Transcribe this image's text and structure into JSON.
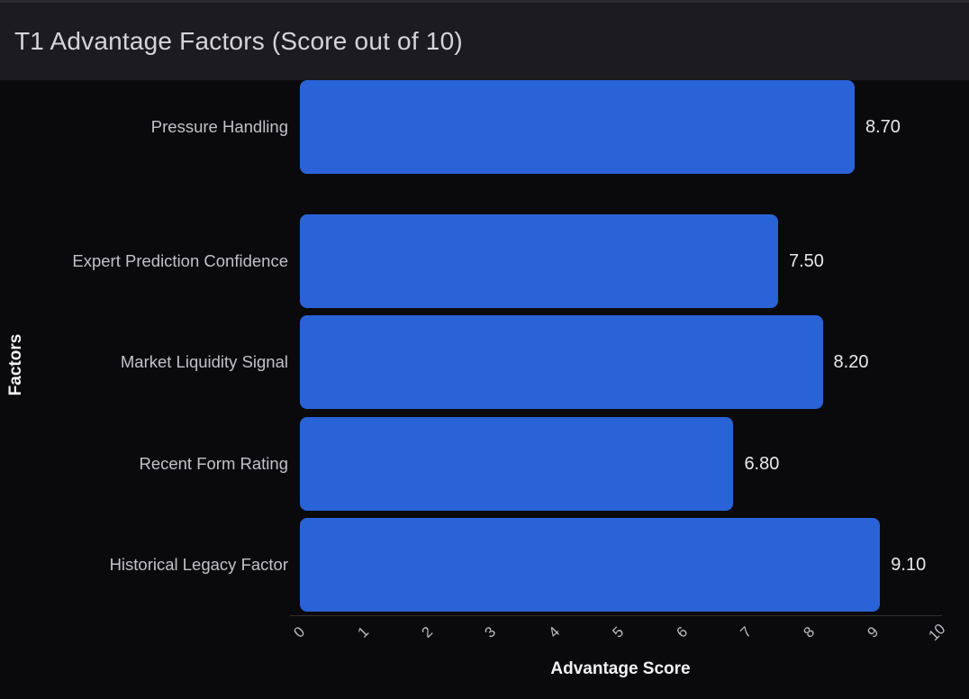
{
  "header": {
    "title": "T1 Advantage Factors (Score out of 10)"
  },
  "colors": {
    "bar_fill": "#2a63d7",
    "header_bg": "#1c1c20",
    "plot_bg": "#0a0a0c",
    "axis_line": "#303034",
    "title_text": "#d4d4d9",
    "category_text": "#c1c1c8",
    "value_text": "#e9e9ec"
  },
  "chart_data": {
    "type": "bar",
    "orientation": "horizontal",
    "title": "T1 Advantage Factors (Score out of 10)",
    "categories": [
      "Expert Prediction Confidence",
      "Market Liquidity Signal",
      "Recent Form Rating",
      "Historical Legacy Factor",
      "Pressure Handling"
    ],
    "values": [
      7.5,
      8.2,
      6.8,
      9.1,
      8.7
    ],
    "value_labels": [
      "7.50",
      "8.20",
      "6.80",
      "9.10",
      "8.70"
    ],
    "xlabel": "Advantage Score",
    "ylabel": "Factors",
    "xlim": [
      0,
      10
    ],
    "ticks": [
      0,
      1,
      2,
      3,
      4,
      5,
      6,
      7,
      8,
      9,
      10
    ],
    "tick_labels": [
      "0",
      "1",
      "2",
      "3",
      "4",
      "5",
      "6",
      "7",
      "8",
      "9",
      "10"
    ],
    "tick_rotation_deg": 45,
    "grid": false,
    "legend": false
  }
}
